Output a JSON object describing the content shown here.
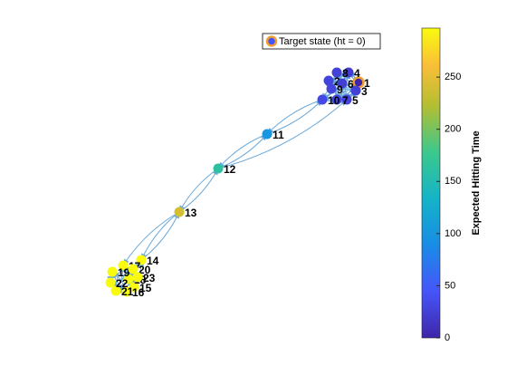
{
  "chart_data": {
    "type": "graph",
    "legend": "Target state (ht = 0)",
    "colorbar_label": "Expected Hitting Time",
    "clim": [
      0,
      297
    ],
    "colorbar_ticks": [
      0,
      50,
      100,
      150,
      200,
      250
    ],
    "target_color": "#f0a030",
    "nodes": [
      "1",
      "2",
      "3",
      "4",
      "5",
      "6",
      "7",
      "8",
      "9",
      "10",
      "11",
      "12",
      "13",
      "14",
      "15",
      "16",
      "17",
      "18",
      "19",
      "20",
      "21",
      "22",
      "23"
    ],
    "values": [
      0,
      28,
      25,
      22,
      27,
      24,
      30,
      26,
      29,
      33,
      100,
      162,
      240,
      297,
      297,
      297,
      297,
      297,
      297,
      297,
      297,
      297,
      297
    ]
  }
}
